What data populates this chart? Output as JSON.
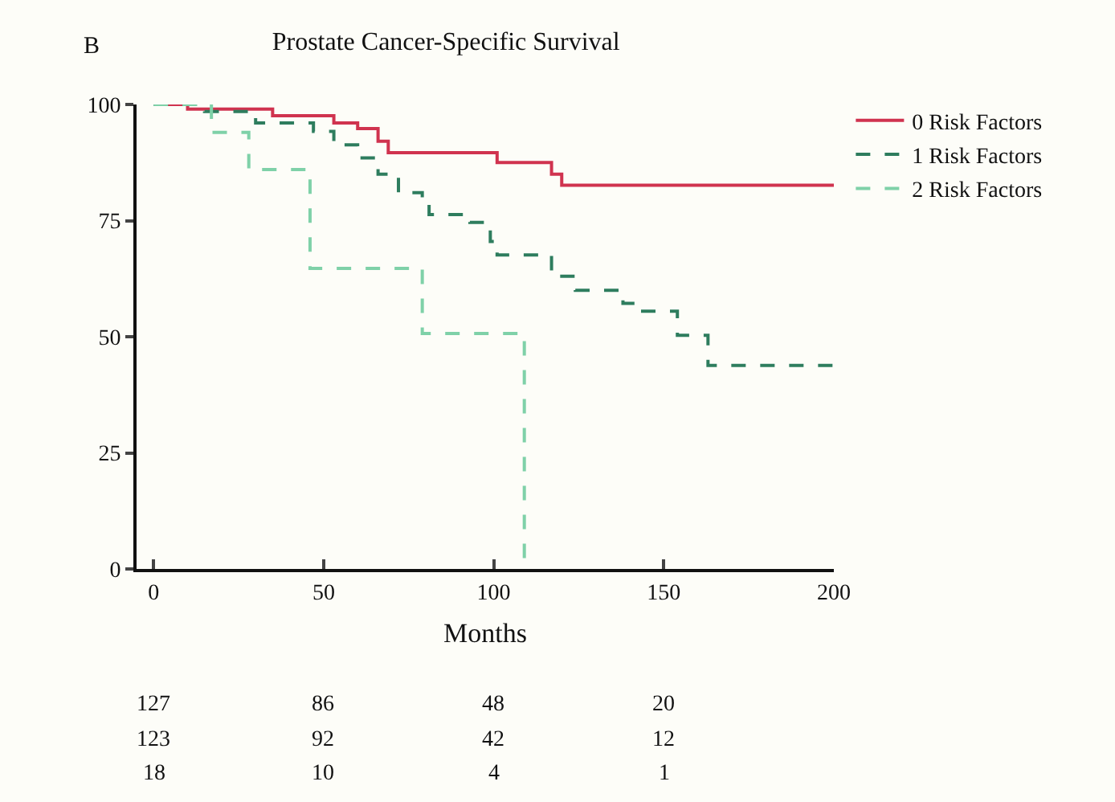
{
  "chart_data": {
    "type": "step",
    "title": "Prostate Cancer-Specific Survival",
    "xlabel": "Months",
    "annotations": [
      "B",
      "127",
      "86",
      "48",
      "20",
      "123",
      "92",
      "42",
      "12",
      "18",
      "10",
      "4",
      "1"
    ],
    "series": [
      {
        "name": "0 Risk Factors",
        "color": "#d0334f",
        "line_style": "solid",
        "x": [
          0,
          10,
          35,
          53,
          60,
          66,
          69,
          101,
          117,
          120,
          200
        ],
        "values": [
          100,
          99,
          97.6,
          96,
          94.8,
          92.1,
          89.6,
          87.5,
          85,
          82.6,
          82.6
        ]
      },
      {
        "name": "1 Risk Factors",
        "color": "#2e7d5e",
        "line_style": "dashed",
        "x": [
          0,
          15,
          30,
          47,
          53,
          60,
          66,
          72,
          79,
          81,
          93,
          99,
          101,
          117,
          124,
          138,
          142,
          154,
          163,
          200
        ],
        "values": [
          100,
          98.5,
          96,
          94.2,
          91.3,
          88.5,
          85,
          81,
          79,
          76.3,
          74.6,
          70.5,
          67.6,
          63,
          60,
          57.2,
          55.5,
          50.3,
          43.8,
          43.8
        ]
      },
      {
        "name": "2 Risk Factors",
        "color": "#7fd1a8",
        "line_style": "dashed",
        "x": [
          0,
          17,
          28,
          46,
          79,
          109,
          109
        ],
        "values": [
          100,
          94,
          86,
          64.7,
          50.7,
          0,
          0
        ]
      }
    ],
    "xlim": [
      -5,
      200
    ],
    "xticks": [
      0,
      50,
      100,
      150,
      200
    ],
    "ylim": [
      0,
      100
    ],
    "yticks": [
      0,
      25,
      50,
      75,
      100
    ],
    "grid": false,
    "legend": "top right",
    "marker": "none"
  }
}
